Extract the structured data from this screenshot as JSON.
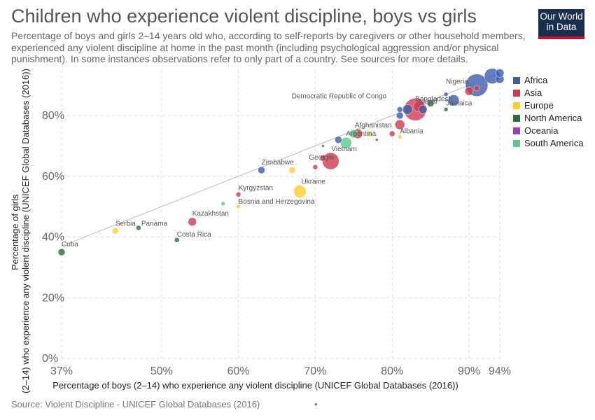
{
  "title": "Children who experience violent discipline, boys vs girls",
  "subtitle": "Percentage of boys and girls 2–14 years old who, according to self-reports by caregivers or other household members, experienced any violent discipline at home in the past month (including psychological aggression and/or physical punishment). In some instances observations refer to only part of a country. See sources for more details.",
  "logo": {
    "line1": "Our World",
    "line2": "in Data"
  },
  "source": "Source: Violent Discipline - UNICEF Global Databases (2016)",
  "source_dot": "•",
  "chart_data": {
    "type": "scatter",
    "xlabel": "Percentage of boys (2–14) who experience any violent discipline (UNICEF Global Databases (2016))",
    "ylabel": "Percentage of girls (2–14) who experience any violent discipline (UNICEF Global Databases (2016))",
    "xlim": [
      37,
      94
    ],
    "ylim": [
      0,
      95
    ],
    "xticks": [
      {
        "v": 37,
        "label": "37%"
      },
      {
        "v": 50,
        "label": "50%"
      },
      {
        "v": 60,
        "label": "60%"
      },
      {
        "v": 70,
        "label": "70%"
      },
      {
        "v": 80,
        "label": "80%"
      },
      {
        "v": 90,
        "label": "90%"
      },
      {
        "v": 94,
        "label": "94%"
      }
    ],
    "yticks": [
      {
        "v": 0,
        "label": "0%"
      },
      {
        "v": 20,
        "label": "20%"
      },
      {
        "v": 40,
        "label": "40%"
      },
      {
        "v": 60,
        "label": "60%"
      },
      {
        "v": 80,
        "label": "80%"
      }
    ],
    "grid": true,
    "legend_position": "right",
    "legend": [
      {
        "name": "Africa",
        "color": "#3c5dad"
      },
      {
        "name": "Asia",
        "color": "#d1394d"
      },
      {
        "name": "Europe",
        "color": "#fecd2f"
      },
      {
        "name": "North America",
        "color": "#2e6b3a"
      },
      {
        "name": "Oceania",
        "color": "#9b42b5"
      },
      {
        "name": "South America",
        "color": "#5cc98c"
      }
    ],
    "points": [
      {
        "label": "Cuba",
        "x": 37,
        "y": 35,
        "r": 5,
        "region": "North America"
      },
      {
        "label": "Serbia",
        "x": 44,
        "y": 42,
        "r": 4.5,
        "region": "Europe"
      },
      {
        "label": "Panama",
        "x": 47,
        "y": 43,
        "r": 3.5,
        "region": "North America"
      },
      {
        "label": "Costa Rica",
        "x": 52,
        "y": 39,
        "r": 3.5,
        "region": "North America"
      },
      {
        "label": "Kazakhstan",
        "x": 54,
        "y": 45,
        "r": 6,
        "region": "Asia"
      },
      {
        "label": "",
        "x": 58,
        "y": 51,
        "r": 3,
        "region": "South America"
      },
      {
        "label": "Kyrgyzstan",
        "x": 60,
        "y": 54,
        "r": 3.5,
        "region": "Asia"
      },
      {
        "label": "Bosnia and Herzegovina",
        "x": 60,
        "y": 50,
        "r": 3,
        "region": "Europe"
      },
      {
        "label": "Zimbabwe",
        "x": 63,
        "y": 62,
        "r": 5,
        "region": "Africa"
      },
      {
        "label": "",
        "x": 67,
        "y": 62,
        "r": 4.5,
        "region": "Europe"
      },
      {
        "label": "Ukraine",
        "x": 68,
        "y": 55,
        "r": 9,
        "region": "Europe"
      },
      {
        "label": "",
        "x": 70,
        "y": 63,
        "r": 3.5,
        "region": "Asia"
      },
      {
        "label": "Georgia",
        "x": 71,
        "y": 66,
        "r": 4.5,
        "region": "Asia"
      },
      {
        "label": "Vietnam",
        "x": 72,
        "y": 65,
        "r": 12,
        "region": "Asia"
      },
      {
        "label": "",
        "x": 71,
        "y": 70,
        "r": 2,
        "region": "North America"
      },
      {
        "label": "",
        "x": 73,
        "y": 72,
        "r": 5,
        "region": "Africa"
      },
      {
        "label": "",
        "x": 74,
        "y": 71,
        "r": 8,
        "region": "South America"
      },
      {
        "label": "Argentina",
        "x": 75,
        "y": 74,
        "r": 6,
        "region": "South America"
      },
      {
        "label": "Afghanistan",
        "x": 75.5,
        "y": 74,
        "r": 7,
        "region": "Asia"
      },
      {
        "label": "",
        "x": 77,
        "y": 74,
        "r": 3.5,
        "region": "Europe"
      },
      {
        "label": "",
        "x": 78,
        "y": 72,
        "r": 2,
        "region": "North America"
      },
      {
        "label": "",
        "x": 80,
        "y": 74,
        "r": 4,
        "region": "Asia"
      },
      {
        "label": "Albania",
        "x": 81,
        "y": 73,
        "r": 3,
        "region": "Europe"
      },
      {
        "label": "",
        "x": 81,
        "y": 77,
        "r": 7,
        "region": "Asia"
      },
      {
        "label": "",
        "x": 81,
        "y": 80,
        "r": 5,
        "region": "Africa"
      },
      {
        "label": "",
        "x": 81,
        "y": 82,
        "r": 4,
        "region": "Africa"
      },
      {
        "label": "Democratic Republic of Congo",
        "x": 82,
        "y": 82,
        "r": 7,
        "region": "Africa"
      },
      {
        "label": "Bangladesh",
        "x": 83,
        "y": 82,
        "r": 16,
        "region": "Asia"
      },
      {
        "label": "Nepal",
        "x": 83.5,
        "y": 83,
        "r": 8,
        "region": "Asia"
      },
      {
        "label": "",
        "x": 84,
        "y": 82,
        "r": 6,
        "region": "Africa"
      },
      {
        "label": "",
        "x": 85,
        "y": 84,
        "r": 5,
        "region": "North America"
      },
      {
        "label": "",
        "x": 87,
        "y": 87,
        "r": 3,
        "region": "Africa"
      },
      {
        "label": "",
        "x": 87,
        "y": 85,
        "r": 2,
        "region": "South America"
      },
      {
        "label": "",
        "x": 87,
        "y": 82,
        "r": 3,
        "region": "North America"
      },
      {
        "label": "Jamaica",
        "x": 88,
        "y": 85,
        "r": 8,
        "region": "Africa"
      },
      {
        "label": "",
        "x": 90,
        "y": 88,
        "r": 6,
        "region": "Asia"
      },
      {
        "label": "Nigeria",
        "x": 91,
        "y": 90,
        "r": 16,
        "region": "Africa"
      },
      {
        "label": "",
        "x": 91,
        "y": 89,
        "r": 4,
        "region": "Asia"
      },
      {
        "label": "",
        "x": 93,
        "y": 93,
        "r": 11,
        "region": "Africa"
      },
      {
        "label": "",
        "x": 94,
        "y": 92,
        "r": 6,
        "region": "Africa"
      },
      {
        "label": "",
        "x": 94,
        "y": 94,
        "r": 6,
        "region": "Africa"
      }
    ]
  }
}
